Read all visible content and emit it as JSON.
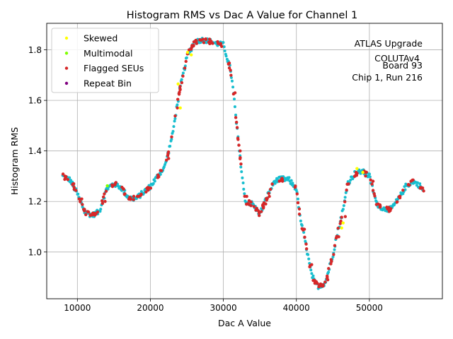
{
  "chart_data": {
    "type": "scatter",
    "title": "Histogram RMS vs Dac A Value for Channel 1",
    "xlabel": "Dac A Value",
    "ylabel": "Histogram RMS",
    "xlim": [
      5800,
      60000
    ],
    "ylim": [
      0.815,
      1.905
    ],
    "xticks": [
      10000,
      20000,
      30000,
      40000,
      50000
    ],
    "xtick_labels": [
      "10000",
      "20000",
      "30000",
      "40000",
      "50000"
    ],
    "yticks": [
      1.0,
      1.2,
      1.4,
      1.6,
      1.8
    ],
    "ytick_labels": [
      "1.0",
      "1.2",
      "1.4",
      "1.6",
      "1.8"
    ],
    "grid": true,
    "legend_position": "top-left",
    "annotation": [
      "ATLAS Upgrade",
      "COLUTAv4",
      "Board 93",
      "Chip 1, Run 216"
    ],
    "colors": {
      "base": "#17becf",
      "Skewed": "#ffff00",
      "Multimodal": "#7fff00",
      "Flagged SEUs": "#d62728",
      "Repeat Bin": "#800080"
    },
    "curve_knots": {
      "dac": [
        8000,
        9000,
        10000,
        11000,
        12000,
        13000,
        14000,
        15000,
        16000,
        17000,
        18000,
        19000,
        20000,
        21000,
        22000,
        23000,
        24000,
        25000,
        26000,
        27000,
        28000,
        29000,
        30000,
        30500,
        31000,
        31500,
        32000,
        32500,
        33000,
        34000,
        35000,
        36000,
        37000,
        38000,
        39000,
        40000,
        40500,
        41000,
        41500,
        42000,
        42500,
        43000,
        43500,
        44000,
        45000,
        45500,
        46000,
        46500,
        47000,
        48000,
        49000,
        50000,
        51000,
        52000,
        53000,
        54000,
        55000,
        56000,
        57000,
        57300
      ],
      "rms": [
        1.3,
        1.285,
        1.23,
        1.16,
        1.145,
        1.16,
        1.25,
        1.27,
        1.255,
        1.215,
        1.21,
        1.235,
        1.26,
        1.3,
        1.34,
        1.46,
        1.64,
        1.77,
        1.83,
        1.84,
        1.835,
        1.825,
        1.82,
        1.77,
        1.72,
        1.6,
        1.45,
        1.32,
        1.2,
        1.19,
        1.15,
        1.22,
        1.28,
        1.29,
        1.285,
        1.25,
        1.14,
        1.07,
        1.0,
        0.92,
        0.88,
        0.865,
        0.87,
        0.88,
        0.99,
        1.06,
        1.12,
        1.18,
        1.27,
        1.31,
        1.32,
        1.3,
        1.19,
        1.17,
        1.17,
        1.21,
        1.26,
        1.28,
        1.26,
        1.245
      ]
    },
    "series": [
      {
        "name": "Skewed",
        "x": [
          23800,
          24100,
          25100,
          25600,
          46200,
          46400,
          48300,
          49100
        ],
        "y": [
          1.665,
          1.57,
          1.79,
          1.78,
          1.095,
          1.115,
          1.33,
          1.315
        ]
      },
      {
        "name": "Multimodal",
        "x": [
          14100
        ],
        "y": [
          1.262
        ]
      },
      {
        "name": "Flagged SEUs",
        "x": [
          8300,
          9500,
          10600,
          11400,
          12400,
          13800,
          15200,
          16300,
          17300,
          18400,
          19700,
          21100,
          22500,
          23700,
          24300,
          25300,
          26300,
          27200,
          28300,
          29600,
          30700,
          31600,
          32300,
          33200,
          34200,
          35200,
          35800,
          36300,
          38100,
          40100,
          41100,
          42100,
          42900,
          43500,
          44300,
          45100,
          45800,
          46700,
          48000,
          49300,
          50500,
          51200,
          52500,
          54200,
          55700,
          57000
        ],
        "y": [
          1.3,
          1.27,
          1.21,
          1.16,
          1.146,
          1.2,
          1.272,
          1.25,
          1.212,
          1.22,
          1.245,
          1.3,
          1.37,
          1.57,
          1.67,
          1.8,
          1.835,
          1.842,
          1.83,
          1.822,
          1.745,
          1.63,
          1.4,
          1.22,
          1.18,
          1.16,
          1.19,
          1.22,
          1.28,
          1.23,
          1.09,
          0.95,
          0.875,
          0.867,
          0.89,
          0.99,
          1.06,
          1.14,
          1.3,
          1.32,
          1.28,
          1.19,
          1.17,
          1.22,
          1.28,
          1.255
        ]
      },
      {
        "name": "Repeat Bin",
        "x": [],
        "y": []
      }
    ]
  }
}
